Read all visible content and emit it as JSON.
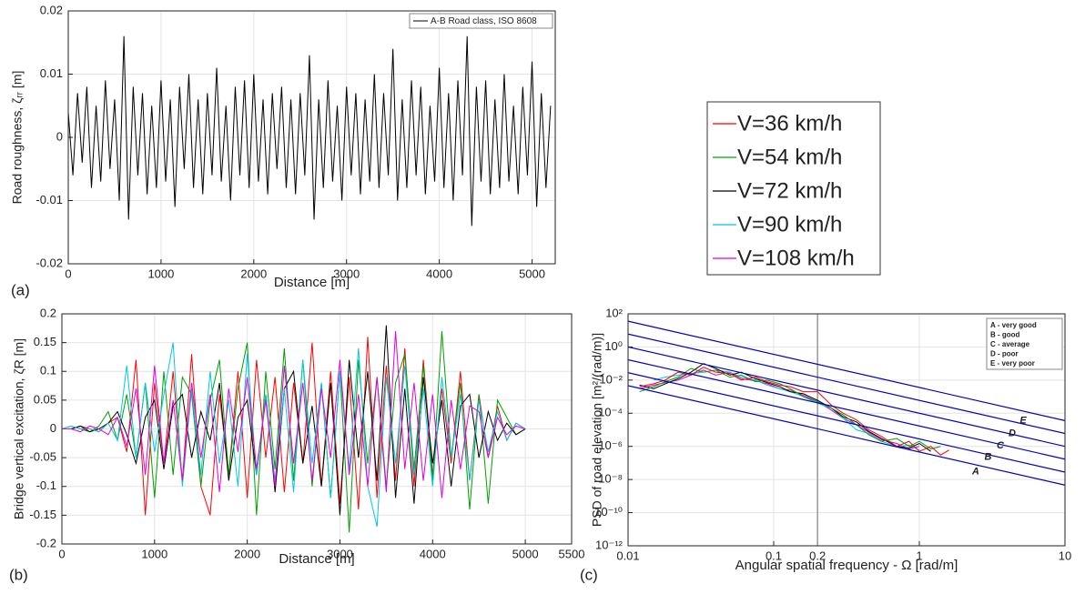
{
  "chart_data": [
    {
      "type": "line",
      "panel_label": "(a)",
      "xlabel": "Distance [m]",
      "ylabel": "Road roughness, ζᵣᵣ [m]",
      "xlim": [
        0,
        5250
      ],
      "xticks": [
        0,
        1000,
        2000,
        3000,
        4000,
        5000
      ],
      "ylim": [
        -0.02,
        0.02
      ],
      "yticks": [
        -0.02,
        -0.01,
        0,
        0.01,
        0.02
      ],
      "grid": true,
      "legend": "upper right",
      "x": [
        0,
        50,
        100,
        150,
        200,
        250,
        300,
        350,
        400,
        450,
        500,
        550,
        600,
        650,
        700,
        750,
        800,
        850,
        900,
        950,
        1000,
        1050,
        1100,
        1150,
        1200,
        1250,
        1300,
        1350,
        1400,
        1450,
        1500,
        1550,
        1600,
        1650,
        1700,
        1750,
        1800,
        1850,
        1900,
        1950,
        2000,
        2050,
        2100,
        2150,
        2200,
        2250,
        2300,
        2350,
        2400,
        2450,
        2500,
        2550,
        2600,
        2650,
        2700,
        2750,
        2800,
        2850,
        2900,
        2950,
        3000,
        3050,
        3100,
        3150,
        3200,
        3250,
        3300,
        3350,
        3400,
        3450,
        3500,
        3550,
        3600,
        3650,
        3700,
        3750,
        3800,
        3850,
        3900,
        3950,
        4000,
        4050,
        4100,
        4150,
        4200,
        4250,
        4300,
        4350,
        4400,
        4450,
        4500,
        4550,
        4600,
        4650,
        4700,
        4750,
        4800,
        4850,
        4900,
        4950,
        5000,
        5050,
        5100,
        5150,
        5200
      ],
      "series": [
        {
          "name": "A-B Road class, ISO 8608",
          "color": "#000000",
          "values": [
            0.004,
            -0.006,
            0.007,
            -0.004,
            0.008,
            -0.008,
            0.005,
            -0.007,
            0.009,
            -0.005,
            0.006,
            -0.01,
            0.016,
            -0.013,
            0.008,
            -0.006,
            0.007,
            -0.009,
            0.005,
            -0.008,
            0.009,
            -0.007,
            0.006,
            -0.011,
            0.008,
            -0.005,
            0.01,
            -0.008,
            0.006,
            -0.009,
            0.007,
            -0.006,
            0.011,
            -0.007,
            0.005,
            -0.01,
            0.008,
            -0.006,
            0.009,
            -0.008,
            0.01,
            -0.007,
            0.006,
            -0.009,
            0.007,
            -0.005,
            0.008,
            -0.008,
            0.006,
            -0.009,
            0.007,
            -0.006,
            0.013,
            -0.013,
            0.006,
            -0.008,
            0.009,
            -0.007,
            0.005,
            -0.01,
            0.008,
            -0.006,
            0.007,
            -0.009,
            0.006,
            -0.007,
            0.01,
            -0.008,
            0.007,
            -0.006,
            0.014,
            -0.01,
            0.006,
            -0.008,
            0.009,
            -0.006,
            0.008,
            -0.009,
            0.005,
            -0.007,
            0.011,
            -0.008,
            0.007,
            -0.01,
            0.009,
            -0.006,
            0.016,
            -0.014,
            0.008,
            -0.007,
            0.009,
            -0.009,
            0.006,
            -0.008,
            0.01,
            -0.007,
            0.005,
            -0.009,
            0.008,
            -0.006,
            0.012,
            -0.011,
            0.007,
            -0.008,
            0.005
          ]
        }
      ]
    },
    {
      "type": "line",
      "panel_label": "(b)",
      "xlabel": "Distance [m]",
      "ylabel": "Bridge vertical excitation, ζR [m]",
      "xlim": [
        0,
        5500
      ],
      "xticks": [
        0,
        1000,
        2000,
        3000,
        4000,
        5000,
        5500
      ],
      "ylim": [
        -0.2,
        0.2
      ],
      "yticks": [
        -0.2,
        -0.15,
        -0.1,
        -0.05,
        0,
        0.05,
        0.1,
        0.15,
        0.2
      ],
      "grid": true,
      "legend": "outside right",
      "x": [
        0,
        100,
        200,
        300,
        400,
        500,
        600,
        700,
        800,
        900,
        1000,
        1100,
        1200,
        1300,
        1400,
        1500,
        1600,
        1700,
        1800,
        1900,
        2000,
        2100,
        2200,
        2300,
        2400,
        2500,
        2600,
        2700,
        2800,
        2900,
        3000,
        3100,
        3200,
        3300,
        3400,
        3500,
        3600,
        3700,
        3800,
        3900,
        4000,
        4100,
        4200,
        4300,
        4400,
        4500,
        4600,
        4700,
        4800,
        4900,
        5000
      ],
      "series": [
        {
          "name": "V=36 km/h",
          "color": "#ff0000",
          "values": [
            0,
            0,
            0.005,
            0,
            -0.005,
            0.01,
            0.02,
            -0.04,
            0.12,
            -0.15,
            0.08,
            -0.06,
            0.1,
            -0.09,
            0.13,
            -0.1,
            -0.15,
            0.06,
            -0.08,
            0.1,
            -0.12,
            0.12,
            -0.05,
            0.09,
            -0.11,
            0.08,
            -0.06,
            0.15,
            -0.1,
            0.1,
            -0.13,
            0.09,
            -0.14,
            0.16,
            -0.12,
            0.11,
            -0.09,
            0.14,
            -0.1,
            0.12,
            -0.08,
            0.07,
            -0.06,
            0.1,
            -0.09,
            0.06,
            -0.05,
            0.04,
            -0.02,
            0.01,
            0
          ]
        },
        {
          "name": "V=54 km/h",
          "color": "#00a000",
          "values": [
            0,
            0.005,
            0,
            -0.005,
            0.005,
            0.03,
            -0.02,
            0.06,
            -0.05,
            0.08,
            -0.12,
            0.1,
            -0.08,
            0.09,
            0.06,
            -0.1,
            0.05,
            0.12,
            -0.08,
            0.07,
            0.15,
            -0.15,
            0.1,
            -0.07,
            0.14,
            -0.09,
            0.12,
            -0.1,
            0.08,
            -0.12,
            0.1,
            -0.18,
            0.12,
            -0.06,
            0.09,
            -0.1,
            0.08,
            0.13,
            -0.07,
            0.11,
            -0.09,
            0.17,
            -0.05,
            0.08,
            -0.14,
            0.06,
            -0.13,
            0.05,
            0.02,
            -0.01,
            0
          ]
        },
        {
          "name": "V=72 km/h",
          "color": "#000000",
          "values": [
            0,
            0,
            0.005,
            -0.005,
            0,
            0.01,
            0.03,
            -0.01,
            -0.06,
            0.02,
            0.05,
            -0.07,
            0.04,
            0.06,
            -0.05,
            0.03,
            -0.02,
            0.08,
            -0.09,
            0.02,
            0.05,
            -0.08,
            0.06,
            -0.11,
            0.07,
            0.1,
            -0.06,
            0.04,
            -0.1,
            0.08,
            -0.15,
            0.12,
            -0.05,
            0.1,
            -0.09,
            0.18,
            -0.12,
            0.07,
            -0.13,
            0.09,
            -0.06,
            0.05,
            -0.1,
            0.04,
            0.06,
            -0.05,
            0.03,
            -0.02,
            0.01,
            -0.01,
            0
          ]
        },
        {
          "name": "V=90 km/h",
          "color": "#00c8e6",
          "values": [
            0,
            0.005,
            0,
            0,
            -0.005,
            0.01,
            -0.02,
            0.11,
            -0.05,
            0.08,
            -0.04,
            0.06,
            0.15,
            -0.1,
            0.07,
            -0.08,
            0.1,
            -0.06,
            0.05,
            -0.1,
            0.13,
            -0.08,
            0.06,
            -0.09,
            0.07,
            -0.11,
            0.12,
            -0.06,
            0.08,
            -0.12,
            0.1,
            -0.07,
            0.14,
            -0.1,
            -0.17,
            0.09,
            -0.06,
            0.11,
            -0.08,
            0.07,
            -0.1,
            0.09,
            -0.05,
            0.06,
            -0.09,
            0.05,
            -0.04,
            0.03,
            -0.02,
            0.01,
            0
          ]
        },
        {
          "name": "V=108 km/h",
          "color": "#e000e0",
          "values": [
            0,
            0,
            -0.005,
            0.005,
            0,
            -0.01,
            0.02,
            -0.03,
            0.07,
            -0.08,
            0.11,
            -0.06,
            0.05,
            -0.09,
            0.08,
            -0.05,
            0.06,
            -0.11,
            0.07,
            -0.04,
            0.09,
            -0.07,
            0.05,
            -0.1,
            0.11,
            -0.06,
            0.08,
            -0.09,
            0.07,
            -0.05,
            0.12,
            -0.08,
            0.06,
            -0.1,
            0.09,
            -0.11,
            0.17,
            -0.07,
            0.08,
            -0.09,
            0.06,
            -0.12,
            0.05,
            -0.07,
            0.04,
            0.03,
            -0.05,
            0.02,
            -0.01,
            0.005,
            0
          ]
        }
      ]
    },
    {
      "type": "line",
      "panel_label": "(c)",
      "xlabel": "Angular spatial frequency - Ω [rad/m]",
      "ylabel": "PSD of road elevation [m²/(rad/m)]",
      "xscale": "log",
      "yscale": "log",
      "xlim": [
        0.01,
        10
      ],
      "xticks": [
        0.01,
        0.1,
        0.2,
        1,
        10
      ],
      "ylim": [
        1e-12,
        100
      ],
      "yticks": [
        {
          "value": 1e-12,
          "label": "10⁻¹²"
        },
        {
          "value": 1e-10,
          "label": "10⁻¹⁰"
        },
        {
          "value": 1e-08,
          "label": "10⁻⁸"
        },
        {
          "value": 1e-06,
          "label": "10⁻⁶"
        },
        {
          "value": 0.0001,
          "label": "10⁻⁴"
        },
        {
          "value": 0.01,
          "label": "10⁻²"
        },
        {
          "value": 1,
          "label": "10⁰"
        },
        {
          "value": 100,
          "label": "10²"
        }
      ],
      "grid": true,
      "vline": 0.2,
      "vline_color": "#999999",
      "legend": "upper right",
      "legend_color": "#ff0000",
      "legend_entries": [
        "A - very good",
        "B - good",
        "C - average",
        "D - poor",
        "E - very poor"
      ],
      "class_line_color": "#0000c0",
      "class_lines": [
        {
          "x": [
            0.01,
            10
          ],
          "values": [
            36,
            3.6e-05
          ]
        },
        {
          "x": [
            0.01,
            10
          ],
          "values": [
            6,
            6e-06
          ]
        },
        {
          "x": [
            0.01,
            10
          ],
          "values": [
            1,
            1e-06
          ]
        },
        {
          "x": [
            0.01,
            10
          ],
          "values": [
            0.17,
            1.7e-07
          ]
        },
        {
          "x": [
            0.01,
            10
          ],
          "values": [
            0.028,
            2.8e-08
          ]
        },
        {
          "x": [
            0.01,
            10
          ],
          "values": [
            0.0046,
            4.6e-09
          ]
        }
      ],
      "annotations": [
        {
          "text": "A",
          "x": 2.3,
          "y": 3e-08
        },
        {
          "text": "B",
          "x": 2.8,
          "y": 2.2e-07
        },
        {
          "text": "C",
          "x": 3.4,
          "y": 1.1e-06
        },
        {
          "text": "D",
          "x": 4.1,
          "y": 6e-06
        },
        {
          "text": "E",
          "x": 4.9,
          "y": 3.5e-05
        }
      ],
      "x": [
        0.012,
        0.015,
        0.018,
        0.022,
        0.027,
        0.033,
        0.04,
        0.05,
        0.06,
        0.075,
        0.09,
        0.11,
        0.13,
        0.16,
        0.2,
        0.25,
        0.3,
        0.37,
        0.45,
        0.55,
        0.7,
        0.85,
        1.0,
        1.2,
        1.4,
        1.6
      ],
      "series": [
        {
          "color": "#e000e0",
          "values": [
            0.003,
            0.005,
            0.007,
            0.01,
            0.02,
            0.04,
            0.02,
            0.03,
            0.012,
            0.009,
            0.006,
            0.003,
            0.0025,
            0.0012,
            0.0005,
            0.00015,
            5e-05,
            2e-05,
            7e-06,
            2.5e-06,
            1.5e-06,
            7e-07,
            1e-06,
            null,
            null,
            null
          ]
        },
        {
          "color": "#00c8e6",
          "values": [
            null,
            0.01,
            0.015,
            0.02,
            0.025,
            0.03,
            0.04,
            0.03,
            0.015,
            0.01,
            0.005,
            0.003,
            0.002,
            0.001,
            0.0004,
            0.0002,
            5e-05,
            1e-05,
            6e-06,
            2e-06,
            1e-06,
            1.2e-06,
            6e-07,
            null,
            null,
            null
          ]
        },
        {
          "color": "#000000",
          "values": [
            0.005,
            0.003,
            0.006,
            0.012,
            0.03,
            0.1,
            0.05,
            0.02,
            0.03,
            0.012,
            0.007,
            0.004,
            0.002,
            0.0015,
            0.0006,
            0.0002,
            6e-05,
            3e-05,
            8e-06,
            3e-06,
            1e-06,
            8e-07,
            1.5e-06,
            5e-07,
            null,
            null
          ]
        },
        {
          "color": "#00a000",
          "values": [
            0.002,
            0.004,
            0.008,
            0.015,
            0.05,
            0.03,
            0.04,
            0.015,
            0.02,
            0.008,
            0.01,
            0.006,
            0.003,
            0.001,
            0.0005,
            0.0002,
            8e-05,
            2e-05,
            5e-06,
            2e-06,
            3e-06,
            1e-06,
            2e-06,
            7e-07,
            1e-06,
            null
          ]
        },
        {
          "color": "#ff0000",
          "values": [
            0.004,
            0.006,
            0.01,
            0.03,
            0.02,
            0.06,
            0.03,
            0.025,
            0.01,
            0.015,
            0.008,
            0.005,
            0.004,
            0.002,
            0.002,
            0.0003,
            0.0001,
            4e-05,
            1e-05,
            4e-06,
            1e-06,
            2e-06,
            5e-07,
            1e-06,
            3e-07,
            6e-07
          ]
        }
      ]
    }
  ]
}
